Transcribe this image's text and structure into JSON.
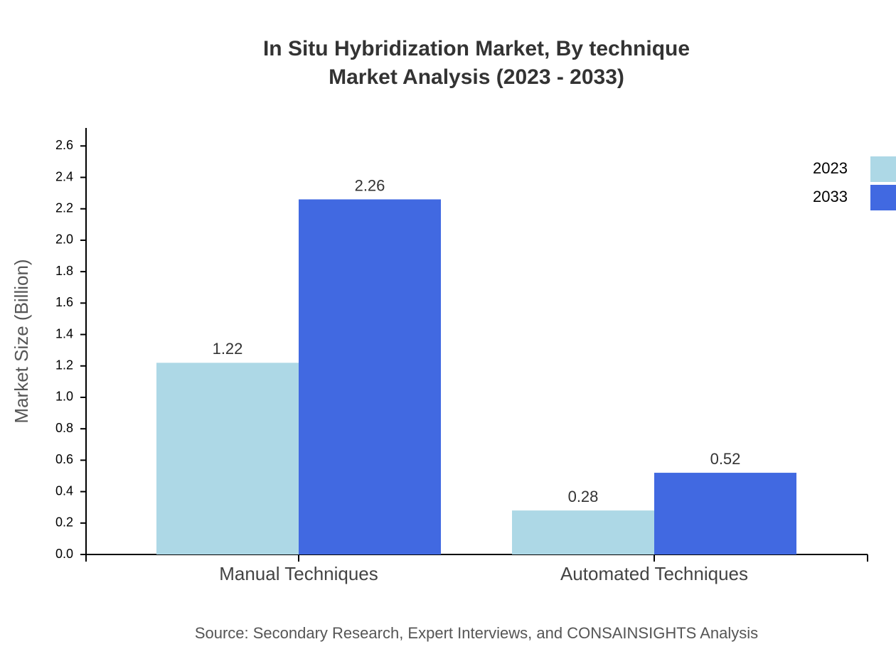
{
  "chart_data": {
    "type": "bar",
    "title": "In Situ Hybridization Market, By technique",
    "subtitle": "Market Analysis (2023 - 2033)",
    "y_label": "Market Size (Billion)",
    "source": "Source: Secondary Research, Expert Interviews, and CONSAINSIGHTS Analysis",
    "categories": [
      "Manual Techniques",
      "Automated Techniques"
    ],
    "series": [
      {
        "name": "2023",
        "color": "#add8e6",
        "values": [
          1.22,
          0.28
        ]
      },
      {
        "name": "2033",
        "color": "#4169e1",
        "values": [
          2.26,
          0.52
        ]
      }
    ],
    "ylim": [
      0,
      2.71
    ],
    "yticks": [
      {
        "value": 0,
        "label": "0.0"
      },
      0.2,
      0.4,
      0.6,
      0.8,
      {
        "value": 1,
        "label": "1.0"
      },
      1.2,
      1.4,
      1.6,
      1.8,
      {
        "value": 2,
        "label": "2.0"
      },
      2.2,
      2.4,
      2.6
    ],
    "grid": false,
    "legend": "top-right"
  }
}
